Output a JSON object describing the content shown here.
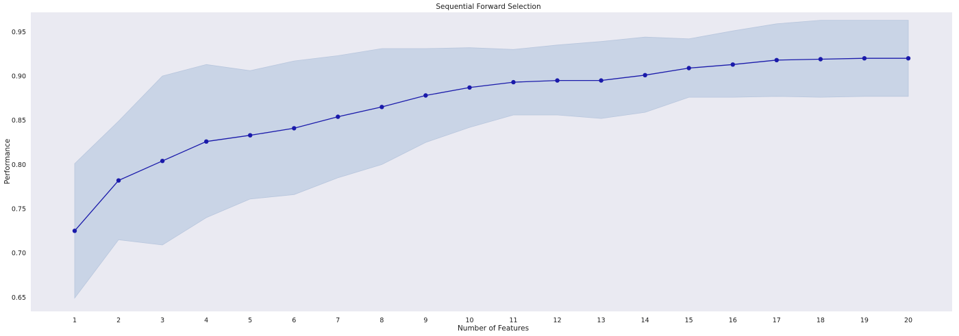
{
  "chart_data": {
    "type": "line",
    "title": "Sequential Forward Selection",
    "xlabel": "Number of Features",
    "ylabel": "Performance",
    "x": [
      1,
      2,
      3,
      4,
      5,
      6,
      7,
      8,
      9,
      10,
      11,
      12,
      13,
      14,
      15,
      16,
      17,
      18,
      19,
      20
    ],
    "xticks": [
      "1",
      "2",
      "3",
      "4",
      "5",
      "6",
      "7",
      "8",
      "9",
      "10",
      "11",
      "12",
      "13",
      "14",
      "15",
      "16",
      "17",
      "18",
      "19",
      "20"
    ],
    "yticks": [
      "0.65",
      "0.70",
      "0.75",
      "0.80",
      "0.85",
      "0.90",
      "0.95"
    ],
    "ylim": [
      0.634,
      0.972
    ],
    "xlim": [
      0,
      21
    ],
    "series": [
      {
        "values": [
          0.725,
          0.782,
          0.804,
          0.826,
          0.833,
          0.841,
          0.854,
          0.865,
          0.878,
          0.887,
          0.893,
          0.895,
          0.895,
          0.901,
          0.909,
          0.913,
          0.918,
          0.919,
          0.92,
          0.92
        ],
        "band_upper": [
          0.801,
          0.849,
          0.9,
          0.913,
          0.906,
          0.917,
          0.923,
          0.931,
          0.931,
          0.932,
          0.93,
          0.935,
          0.939,
          0.944,
          0.942,
          0.951,
          0.959,
          0.963,
          0.963,
          0.963
        ],
        "band_lower": [
          0.649,
          0.715,
          0.709,
          0.74,
          0.761,
          0.766,
          0.785,
          0.8,
          0.825,
          0.842,
          0.856,
          0.856,
          0.852,
          0.859,
          0.876,
          0.876,
          0.877,
          0.876,
          0.877,
          0.877
        ],
        "color": "#1a1aaa",
        "band_color": "#c9d4e6"
      }
    ],
    "grid": false,
    "legend": "none",
    "background": "#eaeaf2"
  }
}
